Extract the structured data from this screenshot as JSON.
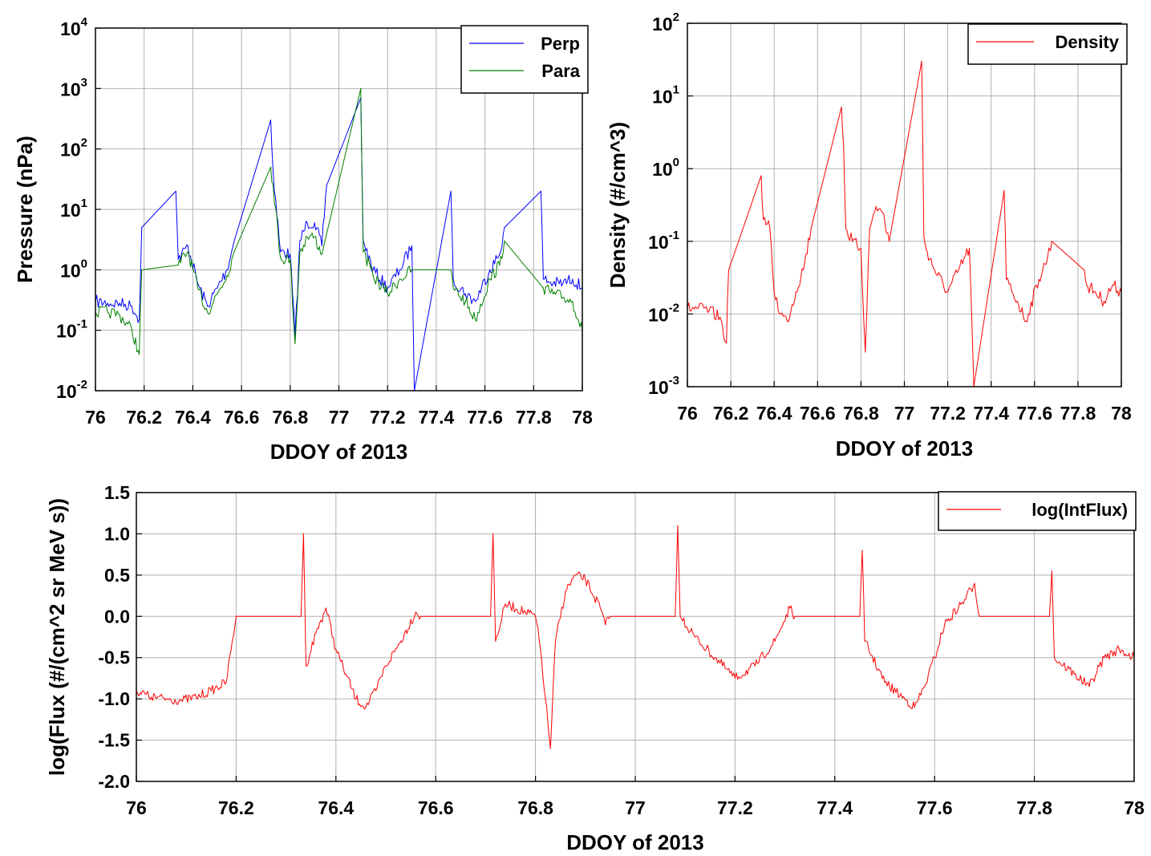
{
  "chart_data": [
    {
      "type": "line",
      "xlabel": "DDOY of 2013",
      "ylabel": "Pressure (nPa)",
      "yscale": "log",
      "xlim": [
        76,
        78
      ],
      "ylim": [
        0.01,
        10000
      ],
      "x_ticks": [
        "76",
        "76.2",
        "76.4",
        "76.6",
        "76.8",
        "77",
        "77.2",
        "77.4",
        "77.6",
        "77.8",
        "78"
      ],
      "y_ticks": [
        {
          "base": "10",
          "exp": "-2"
        },
        {
          "base": "10",
          "exp": "-1"
        },
        {
          "base": "10",
          "exp": "0"
        },
        {
          "base": "10",
          "exp": "1"
        },
        {
          "base": "10",
          "exp": "2"
        },
        {
          "base": "10",
          "exp": "3"
        },
        {
          "base": "10",
          "exp": "4"
        }
      ],
      "grid": true,
      "legend_position": "top-right",
      "colors": {
        "Perp": "#0000ff",
        "Para": "#008000"
      },
      "series": [
        {
          "name": "Perp",
          "color": "#0000ff",
          "x": [
            76.0,
            76.05,
            76.1,
            76.15,
            76.18,
            76.19,
            76.33,
            76.34,
            76.38,
            76.42,
            76.46,
            76.5,
            76.54,
            76.57,
            76.72,
            76.73,
            76.76,
            76.8,
            76.82,
            76.84,
            76.87,
            76.9,
            76.93,
            76.95,
            77.09,
            77.1,
            77.14,
            77.2,
            77.25,
            77.3,
            77.31,
            77.46,
            77.47,
            77.52,
            77.56,
            77.62,
            77.66,
            77.68,
            77.83,
            77.84,
            77.88,
            77.92,
            77.96,
            78.0
          ],
          "y": [
            0.3,
            0.28,
            0.28,
            0.25,
            0.15,
            5.0,
            20.0,
            1.5,
            2.5,
            0.6,
            0.25,
            0.5,
            1.0,
            3.0,
            300.0,
            40.0,
            2.0,
            1.8,
            0.08,
            3.0,
            6.0,
            6.0,
            2.5,
            25.0,
            700.0,
            3.0,
            1.0,
            0.5,
            1.0,
            2.5,
            0.01,
            20.0,
            0.7,
            0.4,
            0.3,
            1.0,
            1.8,
            5.0,
            20.0,
            0.7,
            0.6,
            0.6,
            0.7,
            0.5
          ]
        },
        {
          "name": "Para",
          "color": "#008000",
          "x": [
            76.0,
            76.05,
            76.1,
            76.15,
            76.18,
            76.19,
            76.34,
            76.38,
            76.42,
            76.46,
            76.5,
            76.54,
            76.57,
            76.72,
            76.73,
            76.76,
            76.8,
            76.82,
            76.84,
            76.87,
            76.9,
            76.93,
            77.09,
            77.1,
            77.14,
            77.2,
            77.25,
            77.3,
            77.46,
            77.47,
            77.52,
            77.56,
            77.62,
            77.66,
            77.68,
            77.84,
            77.88,
            77.92,
            77.96,
            78.0
          ],
          "y": [
            0.2,
            0.2,
            0.18,
            0.1,
            0.04,
            1.0,
            1.2,
            2.0,
            0.5,
            0.2,
            0.4,
            0.8,
            2.0,
            50.0,
            25.0,
            1.6,
            1.5,
            0.06,
            2.0,
            3.5,
            3.5,
            1.8,
            1000.0,
            2.0,
            0.8,
            0.4,
            0.7,
            1.0,
            1.0,
            0.5,
            0.3,
            0.15,
            0.7,
            1.2,
            3.0,
            0.5,
            0.4,
            0.35,
            0.3,
            0.1
          ]
        }
      ]
    },
    {
      "type": "line",
      "xlabel": "DDOY of 2013",
      "ylabel": "Density (#/cm^3)",
      "yscale": "log",
      "xlim": [
        76,
        78
      ],
      "ylim": [
        0.001,
        100
      ],
      "x_ticks": [
        "76",
        "76.2",
        "76.4",
        "76.6",
        "76.8",
        "77",
        "77.2",
        "77.4",
        "77.6",
        "77.8",
        "78"
      ],
      "x_tick_render": [
        "76",
        "76.2",
        "76.4",
        "76.6",
        "76.8",
        "77",
        "77.2",
        "77.4",
        "77.6",
        "77.8",
        "78"
      ],
      "y_ticks": [
        {
          "base": "10",
          "exp": "-3"
        },
        {
          "base": "10",
          "exp": "-2"
        },
        {
          "base": "10",
          "exp": "-1"
        },
        {
          "base": "10",
          "exp": "0"
        },
        {
          "base": "10",
          "exp": "1"
        },
        {
          "base": "10",
          "exp": "2"
        }
      ],
      "grid": true,
      "legend_position": "top-right",
      "series": [
        {
          "name": "Density",
          "color": "#ff0000",
          "x": [
            76.0,
            76.05,
            76.1,
            76.15,
            76.18,
            76.19,
            76.34,
            76.35,
            76.38,
            76.4,
            76.43,
            76.46,
            76.5,
            76.54,
            76.57,
            76.71,
            76.72,
            76.73,
            76.76,
            76.8,
            76.82,
            76.84,
            76.87,
            76.9,
            76.93,
            77.08,
            77.09,
            77.1,
            77.14,
            77.2,
            77.25,
            77.3,
            77.32,
            77.46,
            77.47,
            77.52,
            77.56,
            77.62,
            77.66,
            77.68,
            77.83,
            77.84,
            77.88,
            77.92,
            77.96,
            78.0
          ],
          "y": [
            0.012,
            0.012,
            0.011,
            0.009,
            0.004,
            0.04,
            0.8,
            0.2,
            0.15,
            0.02,
            0.01,
            0.008,
            0.02,
            0.05,
            0.15,
            7.0,
            2.0,
            0.15,
            0.1,
            0.08,
            0.003,
            0.15,
            0.3,
            0.25,
            0.1,
            30.0,
            0.12,
            0.08,
            0.04,
            0.02,
            0.04,
            0.08,
            0.001,
            0.5,
            0.03,
            0.015,
            0.008,
            0.03,
            0.06,
            0.1,
            0.04,
            0.025,
            0.02,
            0.015,
            0.025,
            0.02
          ]
        }
      ]
    },
    {
      "type": "line",
      "xlabel": "DDOY of 2013",
      "ylabel": "log(Flux (#/(cm^2 sr MeV s))",
      "xlim": [
        76,
        78
      ],
      "ylim": [
        -2.0,
        1.5
      ],
      "x_ticks": [
        "76",
        "76.2",
        "76.4",
        "76.6",
        "76.8",
        "77",
        "77.2",
        "77.4",
        "77.6",
        "77.8",
        "78"
      ],
      "y_ticks": [
        "-2.0",
        "-1.5",
        "-1.0",
        "-0.5",
        "0.0",
        "0.5",
        "1.0",
        "1.5"
      ],
      "grid": true,
      "legend_position": "top-right",
      "series": [
        {
          "name": "log(IntFlux)",
          "color": "#ff0000",
          "x": [
            76.0,
            76.03,
            76.06,
            76.09,
            76.12,
            76.15,
            76.18,
            76.19,
            76.2,
            76.33,
            76.335,
            76.34,
            76.36,
            76.38,
            76.4,
            76.42,
            76.44,
            76.46,
            76.48,
            76.5,
            76.53,
            76.56,
            76.57,
            76.71,
            76.715,
            76.72,
            76.74,
            76.78,
            76.8,
            76.81,
            76.82,
            76.83,
            76.84,
            76.86,
            76.88,
            76.9,
            76.93,
            76.94,
            76.95,
            77.08,
            77.085,
            77.09,
            77.12,
            77.16,
            77.2,
            77.24,
            77.28,
            77.31,
            77.32,
            77.45,
            77.455,
            77.46,
            77.5,
            77.54,
            77.56,
            77.58,
            77.6,
            77.62,
            77.66,
            77.68,
            77.69,
            77.83,
            77.835,
            77.84,
            77.88,
            77.91,
            77.94,
            77.97,
            78.0
          ],
          "y": [
            -0.9,
            -0.98,
            -1.0,
            -1.02,
            -0.98,
            -0.9,
            -0.8,
            -0.4,
            0.0,
            0.0,
            1.0,
            -0.6,
            -0.2,
            0.1,
            -0.4,
            -0.7,
            -1.0,
            -1.1,
            -0.9,
            -0.6,
            -0.3,
            0.05,
            0.0,
            0.0,
            1.0,
            -0.3,
            0.15,
            0.05,
            0.0,
            -0.4,
            -1.0,
            -1.6,
            -0.3,
            0.3,
            0.5,
            0.45,
            0.1,
            -0.1,
            0.0,
            0.0,
            1.1,
            0.0,
            -0.25,
            -0.5,
            -0.75,
            -0.6,
            -0.3,
            0.1,
            0.0,
            0.0,
            0.8,
            -0.3,
            -0.8,
            -1.0,
            -1.1,
            -0.85,
            -0.5,
            -0.1,
            0.2,
            0.4,
            0.0,
            0.0,
            0.55,
            -0.5,
            -0.7,
            -0.85,
            -0.5,
            -0.4,
            -0.5
          ]
        }
      ]
    }
  ]
}
